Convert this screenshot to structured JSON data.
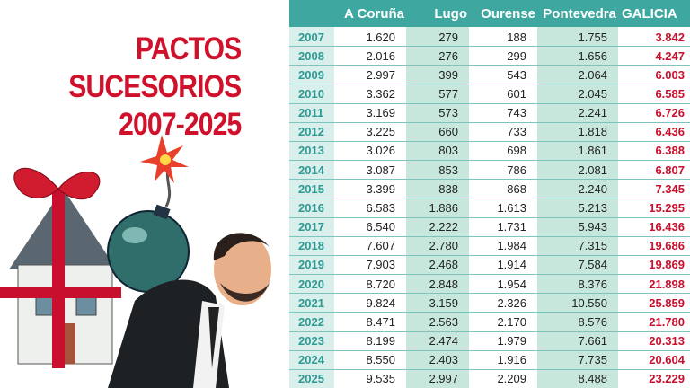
{
  "title": [
    "PACTOS",
    "SUCESORIOS",
    "2007-2025"
  ],
  "table": {
    "headers": [
      "A Coruña",
      "Lugo",
      "Ourense",
      "Pontevedra",
      "GALICIA"
    ],
    "rows": [
      [
        "2007",
        "1.620",
        "279",
        "188",
        "1.755",
        "3.842"
      ],
      [
        "2008",
        "2.016",
        "276",
        "299",
        "1.656",
        "4.247"
      ],
      [
        "2009",
        "2.997",
        "399",
        "543",
        "2.064",
        "6.003"
      ],
      [
        "2010",
        "3.362",
        "577",
        "601",
        "2.045",
        "6.585"
      ],
      [
        "2011",
        "3.169",
        "573",
        "743",
        "2.241",
        "6.726"
      ],
      [
        "2012",
        "3.225",
        "660",
        "733",
        "1.818",
        "6.436"
      ],
      [
        "2013",
        "3.026",
        "803",
        "698",
        "1.861",
        "6.388"
      ],
      [
        "2014",
        "3.087",
        "853",
        "786",
        "2.081",
        "6.807"
      ],
      [
        "2015",
        "3.399",
        "838",
        "868",
        "2.240",
        "7.345"
      ],
      [
        "2016",
        "6.583",
        "1.886",
        "1.613",
        "5.213",
        "15.295"
      ],
      [
        "2017",
        "6.540",
        "2.222",
        "1.731",
        "5.943",
        "16.436"
      ],
      [
        "2018",
        "7.607",
        "2.780",
        "1.984",
        "7.315",
        "19.686"
      ],
      [
        "2019",
        "7.903",
        "2.468",
        "1.914",
        "7.584",
        "19.869"
      ],
      [
        "2020",
        "8.720",
        "2.848",
        "1.954",
        "8.376",
        "21.898"
      ],
      [
        "2021",
        "9.824",
        "3.159",
        "2.326",
        "10.550",
        "25.859"
      ],
      [
        "2022",
        "8.471",
        "2.563",
        "2.170",
        "8.576",
        "21.780"
      ],
      [
        "2023",
        "8.199",
        "2.474",
        "1.979",
        "7.661",
        "20.313"
      ],
      [
        "2024",
        "8.550",
        "2.403",
        "1.916",
        "7.735",
        "20.604"
      ],
      [
        "2025",
        "9.535",
        "2.997",
        "2.209",
        "8.488",
        "23.229"
      ]
    ]
  }
}
